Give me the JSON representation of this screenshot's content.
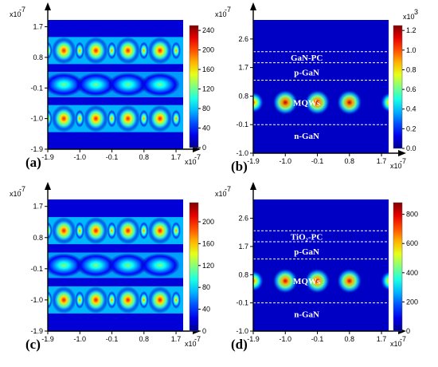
{
  "colors": {
    "colormap": [
      "#00008f",
      "#0000ff",
      "#0080ff",
      "#00ffff",
      "#80ff80",
      "#ffff00",
      "#ff8000",
      "#ff0000",
      "#800000"
    ],
    "interface_line": "#ffffff"
  },
  "chart_data": [
    {
      "type": "heatmap",
      "panel": "(a)",
      "x_ticks": [
        "-1.9",
        "-1.0",
        "-0.1",
        "0.8",
        "1.7"
      ],
      "x_scale": "x10",
      "x_exponent": "-7",
      "y_ticks": [
        "1.7",
        "0.8",
        "-0.1",
        "-1.0",
        "-1.9"
      ],
      "y_scale": "x10",
      "y_exponent": "-7",
      "xlim": [
        -1.9,
        1.9
      ],
      "ylim": [
        -1.9,
        1.9
      ],
      "colorbar": {
        "ticks": [
          "240",
          "200",
          "160",
          "120",
          "80",
          "40",
          "0"
        ],
        "min": 0,
        "max": 250
      },
      "rows": [
        {
          "y": 1.0,
          "kind": "pinched",
          "peak": 215
        },
        {
          "y": 0.0,
          "kind": "band",
          "peak": 125
        },
        {
          "y": -1.0,
          "kind": "pinched",
          "peak": 215
        }
      ],
      "columns": [
        -1.45,
        -0.55,
        0.35,
        1.25
      ],
      "layers": []
    },
    {
      "type": "heatmap",
      "panel": "(b)",
      "x_ticks": [
        "-1.9",
        "-1.0",
        "-0.1",
        "0.8",
        "1.7"
      ],
      "x_scale": "x10",
      "x_exponent": "-7",
      "y_ticks": [
        "2.6",
        "1.7",
        "0.8",
        "-0.1",
        "-1.0"
      ],
      "y_scale": "x10",
      "y_exponent": "-7",
      "xlim": [
        -1.9,
        1.9
      ],
      "ylim": [
        -1.0,
        3.2
      ],
      "colorbar": {
        "ticks": [
          "1.2",
          "1.0",
          "0.8",
          "0.6",
          "0.4",
          "0.2",
          "0.0"
        ],
        "min": 0,
        "max": 1.25,
        "scale": "x10",
        "exponent": "3"
      },
      "columns": [
        -1.0,
        -0.1,
        0.8
      ],
      "edge_columns": [
        -1.9,
        1.7
      ],
      "mode_center_y": 0.6,
      "peak": 1.2,
      "interfaces_y": [
        2.2,
        1.85,
        1.3,
        -0.1
      ],
      "layers": [
        "GaN-PC",
        "p-GaN",
        "MQWs",
        "n-GaN"
      ],
      "layer_y": [
        2.02,
        1.55,
        0.6,
        -0.45
      ]
    },
    {
      "type": "heatmap",
      "panel": "(c)",
      "x_ticks": [
        "-1.9",
        "-1.0",
        "-0.1",
        "0.8",
        "1.7"
      ],
      "x_scale": "x10",
      "x_exponent": "-7",
      "y_ticks": [
        "1.7",
        "0.8",
        "-0.1",
        "-1.0",
        "-1.9"
      ],
      "y_scale": "x10",
      "y_exponent": "-7",
      "xlim": [
        -1.9,
        1.9
      ],
      "ylim": [
        -1.9,
        1.9
      ],
      "colorbar": {
        "ticks": [
          "200",
          "160",
          "120",
          "80",
          "40",
          "0"
        ],
        "min": 0,
        "max": 235
      },
      "rows": [
        {
          "y": 1.0,
          "kind": "pinched",
          "peak": 205
        },
        {
          "y": 0.0,
          "kind": "band",
          "peak": 120
        },
        {
          "y": -1.0,
          "kind": "pinched",
          "peak": 205
        }
      ],
      "columns": [
        -1.45,
        -0.55,
        0.35,
        1.25
      ],
      "layers": []
    },
    {
      "type": "heatmap",
      "panel": "(d)",
      "x_ticks": [
        "-1.9",
        "-1.0",
        "-0.1",
        "0.8",
        "1.7"
      ],
      "x_scale": "x10",
      "x_exponent": "-7",
      "y_ticks": [
        "2.6",
        "1.7",
        "0.8",
        "-0.1",
        "-1.0"
      ],
      "y_scale": "x10",
      "y_exponent": "-7",
      "xlim": [
        -1.9,
        1.9
      ],
      "ylim": [
        -1.0,
        3.2
      ],
      "colorbar": {
        "ticks": [
          "800",
          "600",
          "400",
          "200",
          "0"
        ],
        "min": 0,
        "max": 880
      },
      "columns": [
        -1.0,
        -0.1,
        0.8
      ],
      "edge_columns": [
        -1.9,
        1.7
      ],
      "mode_center_y": 0.6,
      "peak": 820,
      "interfaces_y": [
        2.2,
        1.85,
        1.3,
        -0.1
      ],
      "layers": [
        "TiO₂-PC",
        "p-GaN",
        "MQWs",
        "n-GaN"
      ],
      "layer_y": [
        2.02,
        1.55,
        0.6,
        -0.45
      ]
    }
  ]
}
